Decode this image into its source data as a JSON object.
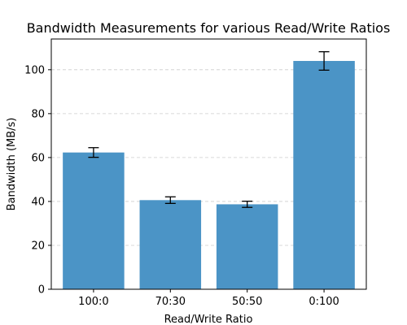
{
  "chart_data": {
    "type": "bar",
    "title": "Bandwidth Measurements for various Read/Write Ratios",
    "xlabel": "Read/Write Ratio",
    "ylabel": "Bandwidth (MB/s)",
    "categories": [
      "100:0",
      "70:30",
      "50:50",
      "0:100"
    ],
    "values": [
      62.3,
      40.6,
      38.7,
      104.0
    ],
    "errors": [
      2.2,
      1.5,
      1.4,
      4.2
    ],
    "ylim": [
      0,
      114
    ],
    "yticks": [
      "0",
      "20",
      "40",
      "60",
      "80",
      "100"
    ],
    "grid": "y-dashed",
    "colors": {
      "bar": "#4b94c6",
      "error": "#000000",
      "grid": "#cccccc",
      "axis": "#000000"
    }
  }
}
